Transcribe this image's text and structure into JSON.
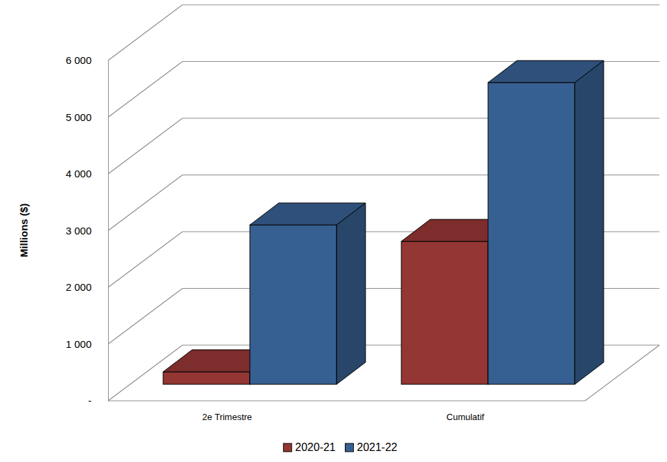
{
  "chart_data": {
    "type": "bar",
    "y_label": "Millions ($)",
    "categories": [
      "2e Trimestre",
      "Cumulatif"
    ],
    "series": [
      {
        "name": "2020-21",
        "color": "#943634",
        "values": [
          220,
          2520
        ]
      },
      {
        "name": "2021-22",
        "color": "#376092",
        "values": [
          2810,
          5320
        ]
      }
    ],
    "ylim": [
      0,
      6000
    ],
    "yticks": [
      {
        "value": 0,
        "label": "-"
      },
      {
        "value": 1000,
        "label": "1 000"
      },
      {
        "value": 2000,
        "label": "2 000"
      },
      {
        "value": 3000,
        "label": "3 000"
      },
      {
        "value": 4000,
        "label": "4 000"
      },
      {
        "value": 5000,
        "label": "5 000"
      },
      {
        "value": 6000,
        "label": "6 000"
      }
    ],
    "grid": true,
    "legend": "bottom"
  }
}
